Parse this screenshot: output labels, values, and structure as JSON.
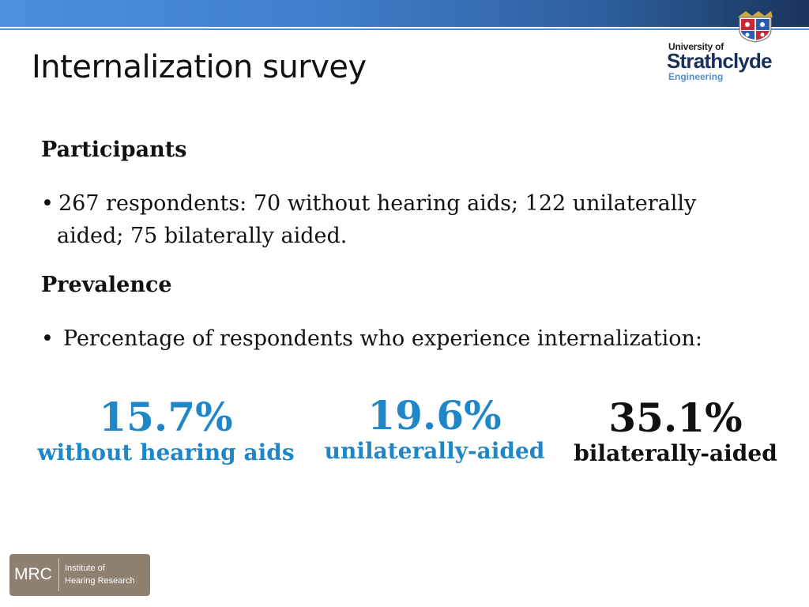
{
  "slide": {
    "title": "Internalization survey",
    "logo": {
      "line1": "University of",
      "line2": "Strathclyde",
      "line3": "Engineering",
      "icon": "university-crest-icon"
    },
    "sections": {
      "participants_heading": "Participants",
      "participants_bullet_marker": "•",
      "participants_bullet_line1": "267 respondents: 70 without hearing aids; 122 unilaterally",
      "participants_bullet_line2": "aided; 75 bilaterally aided.",
      "prevalence_heading": "Prevalence",
      "prevalence_bullet_marker": "•",
      "prevalence_bullet": "Percentage of respondents who experience internalization:"
    },
    "stats": [
      {
        "value": "15.7%",
        "label": "without hearing aids",
        "color": "#1f86c7"
      },
      {
        "value": "19.6%",
        "label": "unilaterally-aided",
        "color": "#1f86c7"
      },
      {
        "value": "35.1%",
        "label": "bilaterally-aided",
        "color": "#111111"
      }
    ],
    "footer_logo": {
      "abbr": "MRC",
      "line1": "Institute of",
      "line2": "Hearing Research"
    },
    "colors": {
      "accent_blue": "#1f86c7",
      "header_gradient_start": "#4e90dc",
      "header_gradient_end": "#19355c",
      "mrc_background": "#8e8171"
    }
  }
}
